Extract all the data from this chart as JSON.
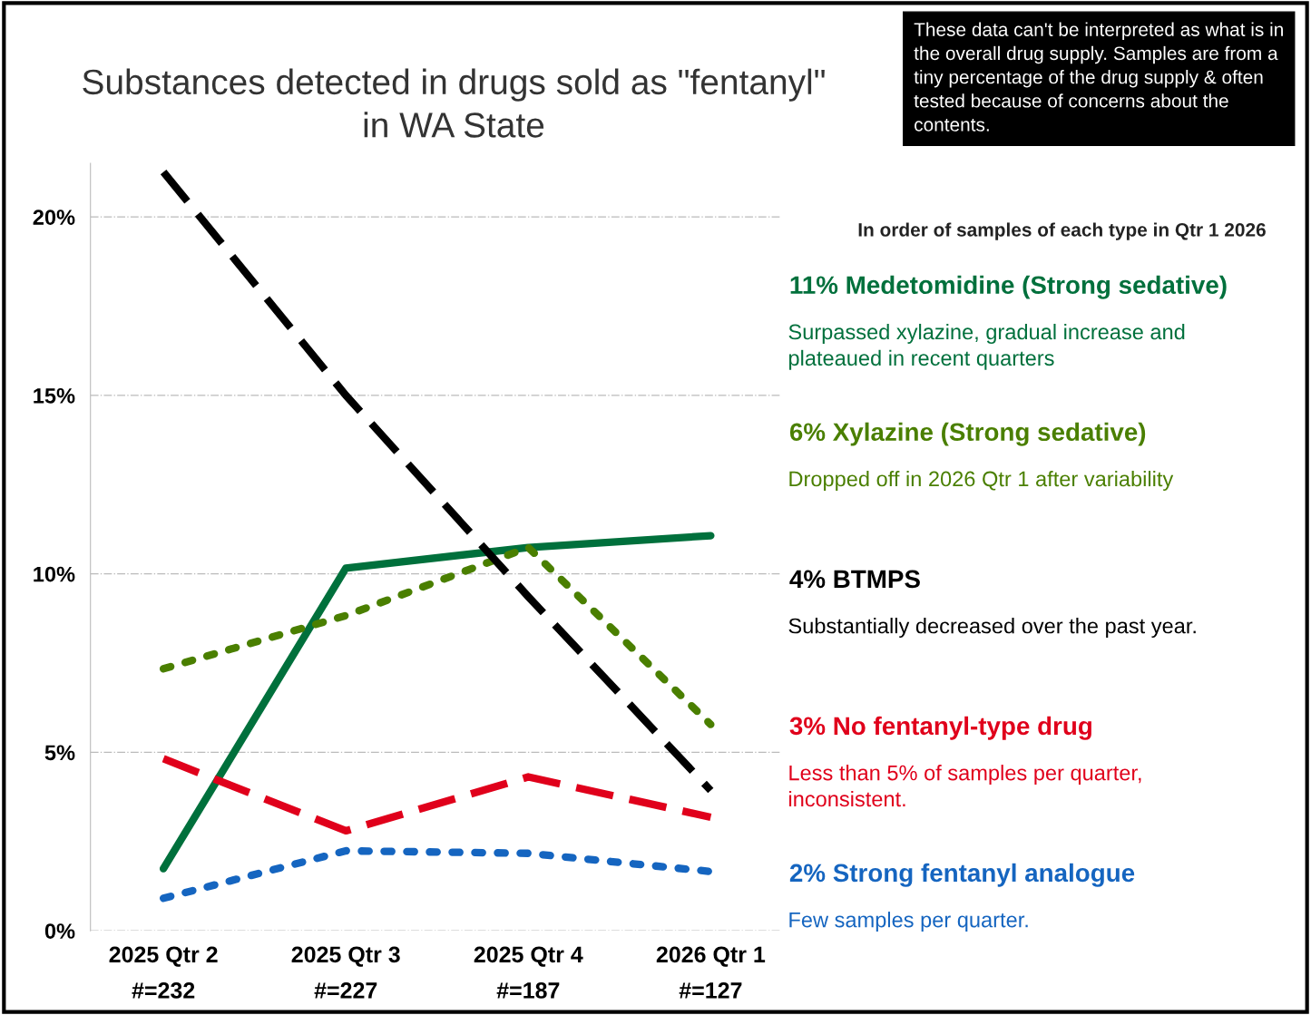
{
  "chart_data": {
    "type": "line",
    "title": "Substances detected in drugs sold as \"fentanyl\"\nin WA State",
    "categories": [
      "2025 Qtr 2\n#=232",
      "2025 Qtr 3\n#=227",
      "2025 Qtr 4\n#=187",
      "2026 Qtr 1\n#=127"
    ],
    "series": [
      {
        "name": "11% Medetomidine (Strong sedative)",
        "color": "#00703c",
        "line_style": "solid",
        "values": [
          1.74,
          10.16,
          10.74,
          11.07
        ]
      },
      {
        "name": "6% Xylazine (Strong sedative)",
        "color": "#4a7f00",
        "line_style": "dotted",
        "values": [
          7.34,
          8.83,
          10.74,
          5.78
        ]
      },
      {
        "name": "4% BTMPS",
        "color": "#000000",
        "line_style": "dashed",
        "values": [
          21.26,
          15.0,
          9.36,
          3.93
        ]
      },
      {
        "name": "3% No fentanyl-type drug",
        "color": "#e0001b",
        "line_style": "dashed",
        "values": [
          4.82,
          2.8,
          4.31,
          3.18
        ]
      },
      {
        "name": "2% Strong fentanyl analogue",
        "color": "#1565c0",
        "line_style": "dotted",
        "values": [
          0.91,
          2.24,
          2.17,
          1.66
        ]
      }
    ],
    "annotations": [
      "These data can't be interpreted as what is in the overall drug supply. Samples are from a tiny percentage of the drug supply & often tested because of concerns about the contents.",
      "In order of samples of each type in Qtr 1 2026",
      "Surpassed xylazine, gradual increase and\nplateaued in recent quarters",
      "Dropped off in 2026 Qtr 1 after variability",
      "Substantially decreased over the past year.",
      "Less than 5% of samples per quarter,\ninconsistent.",
      "Few samples per quarter."
    ],
    "ylim": [
      0,
      21.5
    ],
    "yticks": [
      {
        "value": 0,
        "label": "0%"
      },
      {
        "value": 5,
        "label": "5%"
      },
      {
        "value": 10,
        "label": "10%"
      },
      {
        "value": 15,
        "label": "15%"
      },
      {
        "value": 20,
        "label": "20%"
      }
    ],
    "grid": "y",
    "legend": "right",
    "marker": "none"
  }
}
